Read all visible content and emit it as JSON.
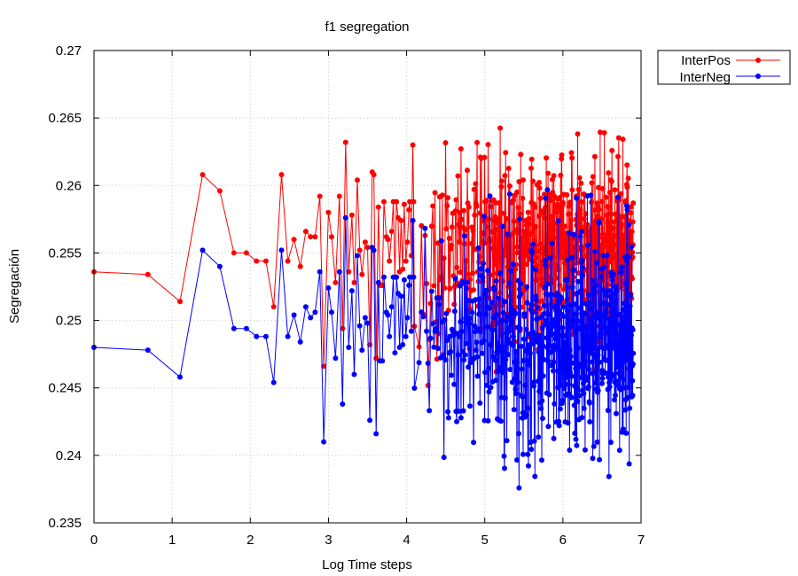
{
  "chart_data": {
    "type": "line",
    "title": "f1 segregation",
    "xlabel": "Log Time steps",
    "ylabel": "Segregación",
    "xlim": [
      0,
      7
    ],
    "ylim": [
      0.235,
      0.27
    ],
    "x_ticks": [
      "0",
      "1",
      "2",
      "3",
      "4",
      "5",
      "6",
      "7"
    ],
    "y_ticks": [
      "0.235",
      "0.24",
      "0.245",
      "0.25",
      "0.255",
      "0.26",
      "0.265",
      "0.27"
    ],
    "x_tick_values": [
      0,
      1,
      2,
      3,
      4,
      5,
      6,
      7
    ],
    "y_tick_values": [
      0.235,
      0.24,
      0.245,
      0.25,
      0.255,
      0.26,
      0.265,
      0.27
    ],
    "grid": true,
    "legend_position": "outside-top-right",
    "series": [
      {
        "name": "InterPos",
        "color": "#ff0000",
        "marker": "circle",
        "x": [
          0,
          0.69,
          1.1,
          1.39,
          1.61,
          1.79,
          1.95,
          2.08,
          2.2,
          2.3,
          2.4,
          2.48,
          2.56,
          2.64,
          2.71,
          2.77,
          2.83,
          2.89,
          2.94,
          3.0,
          3.04,
          3.09,
          3.14,
          3.18,
          3.22,
          3.26,
          3.3,
          3.33,
          3.37,
          3.4,
          3.43,
          3.47,
          3.5,
          3.53,
          3.56,
          3.58,
          3.61,
          3.64,
          3.66,
          3.69,
          3.71,
          3.74,
          3.76,
          3.78,
          3.81,
          3.83,
          3.85,
          3.87,
          3.89,
          3.91,
          3.93,
          3.95,
          3.97,
          3.99,
          4.01,
          4.03,
          4.04,
          4.06,
          4.08,
          4.09
        ],
        "y": [
          0.2536,
          0.2534,
          0.2514,
          0.2608,
          0.2596,
          0.255,
          0.255,
          0.2544,
          0.2544,
          0.251,
          0.2608,
          0.2544,
          0.256,
          0.254,
          0.2566,
          0.2562,
          0.2562,
          0.2592,
          0.2466,
          0.258,
          0.2562,
          0.2528,
          0.2592,
          0.2494,
          0.2632,
          0.2536,
          0.2578,
          0.2528,
          0.2604,
          0.2552,
          0.2534,
          0.2558,
          0.2554,
          0.2482,
          0.261,
          0.2608,
          0.2472,
          0.2584,
          0.2526,
          0.2526,
          0.2588,
          0.2562,
          0.256,
          0.2544,
          0.2566,
          0.2588,
          0.2532,
          0.2588,
          0.2576,
          0.2536,
          0.2574,
          0.2538,
          0.2586,
          0.2544,
          0.2558,
          0.2582,
          0.2588,
          0.2548,
          0.263,
          0.2588
        ],
        "dense_region": {
          "x_from": 4.1,
          "x_to": 6.9,
          "y_band": [
            0.245,
            0.2652
          ],
          "points": 620
        }
      },
      {
        "name": "InterNeg",
        "color": "#0000ff",
        "marker": "circle",
        "x": [
          0,
          0.69,
          1.1,
          1.39,
          1.61,
          1.79,
          1.95,
          2.08,
          2.2,
          2.3,
          2.4,
          2.48,
          2.56,
          2.64,
          2.71,
          2.77,
          2.83,
          2.89,
          2.94,
          3.0,
          3.04,
          3.09,
          3.14,
          3.18,
          3.22,
          3.26,
          3.3,
          3.33,
          3.37,
          3.4,
          3.43,
          3.47,
          3.5,
          3.53,
          3.56,
          3.58,
          3.61,
          3.64,
          3.66,
          3.69,
          3.71,
          3.74,
          3.76,
          3.78,
          3.81,
          3.83,
          3.85,
          3.87,
          3.89,
          3.91,
          3.93,
          3.95,
          3.97,
          3.99,
          4.01,
          4.03,
          4.04,
          4.06,
          4.08,
          4.09
        ],
        "y": [
          0.248,
          0.2478,
          0.2458,
          0.2552,
          0.254,
          0.2494,
          0.2494,
          0.2488,
          0.2488,
          0.2454,
          0.2552,
          0.2488,
          0.2504,
          0.2484,
          0.251,
          0.2502,
          0.2506,
          0.2536,
          0.241,
          0.2524,
          0.2506,
          0.2472,
          0.2536,
          0.2438,
          0.2576,
          0.248,
          0.2522,
          0.246,
          0.2548,
          0.2496,
          0.2478,
          0.2502,
          0.2498,
          0.2426,
          0.2554,
          0.2552,
          0.2416,
          0.2528,
          0.247,
          0.247,
          0.2532,
          0.2506,
          0.2504,
          0.2488,
          0.251,
          0.2532,
          0.2476,
          0.2532,
          0.252,
          0.248,
          0.2518,
          0.2482,
          0.253,
          0.2488,
          0.2502,
          0.2526,
          0.2532,
          0.2492,
          0.2574,
          0.2532
        ],
        "dense_region": {
          "x_from": 4.1,
          "x_to": 6.9,
          "y_band": [
            0.2374,
            0.2598
          ],
          "points": 620
        }
      }
    ]
  }
}
